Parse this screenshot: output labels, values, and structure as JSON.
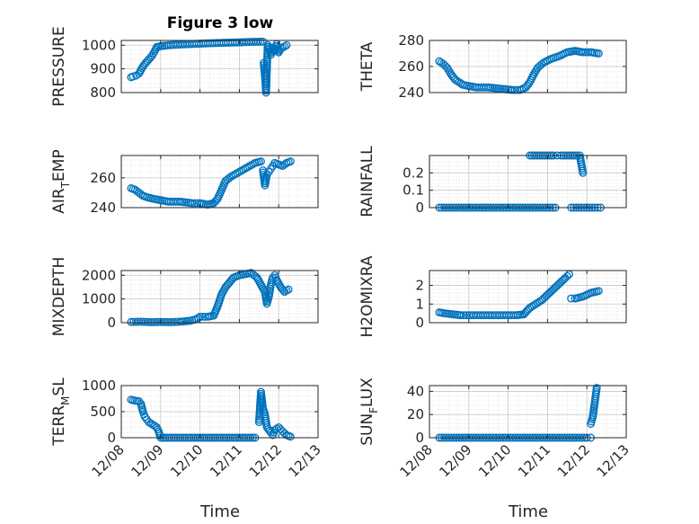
{
  "figure": {
    "title": "Figure 3 low",
    "xlabel": "Time"
  },
  "chart_data": [
    {
      "type": "scatter",
      "ylabel": "PRESSURE",
      "xlim": [
        0,
        5
      ],
      "ylim": [
        800,
        1020
      ],
      "yticks": [
        {
          "v": 800,
          "t": "800"
        },
        {
          "v": 900,
          "t": "900"
        },
        {
          "v": 1000,
          "t": "1000"
        }
      ],
      "grid": true,
      "segments": [
        [
          [
            0.25,
            865
          ],
          [
            0.3,
            868
          ],
          [
            0.38,
            872
          ],
          [
            0.45,
            880
          ],
          [
            0.5,
            895
          ],
          [
            0.55,
            910
          ],
          [
            0.62,
            925
          ],
          [
            0.7,
            940
          ],
          [
            0.78,
            955
          ],
          [
            0.85,
            975
          ],
          [
            0.9,
            992
          ],
          [
            1.0,
            996
          ],
          [
            1.2,
            1000
          ],
          [
            1.5,
            1003
          ],
          [
            1.8,
            1005
          ],
          [
            2.2,
            1008
          ],
          [
            2.6,
            1010
          ],
          [
            3.0,
            1012
          ],
          [
            3.3,
            1014
          ],
          [
            3.6,
            1015
          ]
        ],
        [
          [
            3.62,
            925
          ],
          [
            3.65,
            870
          ],
          [
            3.68,
            800
          ],
          [
            3.72,
            1000
          ],
          [
            3.77,
            985
          ],
          [
            3.8,
            960
          ],
          [
            3.85,
            990
          ],
          [
            3.9,
            975
          ],
          [
            3.95,
            1005
          ],
          [
            4.0,
            970
          ],
          [
            4.05,
            985
          ],
          [
            4.2,
            1000
          ]
        ]
      ]
    },
    {
      "type": "scatter",
      "ylabel": "THETA",
      "xlim": [
        0,
        5
      ],
      "ylim": [
        240,
        280
      ],
      "yticks": [
        {
          "v": 240,
          "t": "240"
        },
        {
          "v": 260,
          "t": "260"
        },
        {
          "v": 280,
          "t": "280"
        }
      ],
      "grid": true,
      "segments": [
        [
          [
            0.25,
            264
          ],
          [
            0.35,
            262
          ],
          [
            0.45,
            259
          ],
          [
            0.55,
            254
          ],
          [
            0.65,
            250
          ],
          [
            0.75,
            248
          ],
          [
            0.85,
            246
          ],
          [
            1.0,
            245
          ],
          [
            1.2,
            244
          ],
          [
            1.5,
            244
          ],
          [
            1.8,
            243
          ],
          [
            2.1,
            242
          ],
          [
            2.3,
            242
          ],
          [
            2.45,
            244
          ],
          [
            2.55,
            248
          ],
          [
            2.65,
            254
          ],
          [
            2.75,
            259
          ],
          [
            2.9,
            263
          ],
          [
            3.1,
            266
          ],
          [
            3.3,
            268
          ],
          [
            3.5,
            271
          ],
          [
            3.7,
            272
          ],
          [
            3.9,
            271
          ],
          [
            4.1,
            271
          ],
          [
            4.3,
            270
          ]
        ]
      ]
    },
    {
      "type": "scatter",
      "ylabel": "AIR",
      "ylabel_sub": "T",
      "ylabel_tail": "EMP",
      "xlim": [
        0,
        5
      ],
      "ylim": [
        240,
        275
      ],
      "yticks": [
        {
          "v": 240,
          "t": "240"
        },
        {
          "v": 260,
          "t": "260"
        }
      ],
      "grid": true,
      "segments": [
        [
          [
            0.25,
            253
          ],
          [
            0.35,
            252
          ],
          [
            0.45,
            250
          ],
          [
            0.55,
            248
          ],
          [
            0.65,
            247
          ],
          [
            0.8,
            246
          ],
          [
            1.0,
            245
          ],
          [
            1.2,
            244
          ],
          [
            1.5,
            244
          ],
          [
            1.8,
            243
          ],
          [
            2.0,
            243
          ],
          [
            2.2,
            242
          ],
          [
            2.35,
            243
          ],
          [
            2.45,
            246
          ],
          [
            2.55,
            252
          ],
          [
            2.65,
            258
          ],
          [
            2.8,
            261
          ],
          [
            3.0,
            264
          ],
          [
            3.2,
            267
          ],
          [
            3.4,
            270
          ],
          [
            3.55,
            271
          ]
        ],
        [
          [
            3.6,
            265
          ],
          [
            3.65,
            255
          ],
          [
            3.7,
            262
          ],
          [
            3.75,
            264
          ],
          [
            3.8,
            266
          ],
          [
            3.85,
            268
          ],
          [
            3.9,
            270
          ],
          [
            4.0,
            269
          ],
          [
            4.1,
            268
          ],
          [
            4.2,
            270
          ],
          [
            4.3,
            271
          ]
        ]
      ]
    },
    {
      "type": "scatter",
      "ylabel": "RAINFALL",
      "xlim": [
        0,
        5
      ],
      "ylim": [
        0,
        0.3
      ],
      "yticks": [
        {
          "v": 0,
          "t": "0"
        },
        {
          "v": 0.1,
          "t": "0.1"
        },
        {
          "v": 0.2,
          "t": "0.2"
        }
      ],
      "grid": true,
      "segments": [
        [
          [
            0.25,
            0
          ],
          [
            0.5,
            0
          ],
          [
            0.75,
            0
          ],
          [
            1.0,
            0
          ],
          [
            1.25,
            0
          ],
          [
            1.5,
            0
          ],
          [
            1.75,
            0
          ],
          [
            2.0,
            0
          ],
          [
            2.25,
            0
          ],
          [
            2.5,
            0
          ],
          [
            2.75,
            0
          ],
          [
            3.0,
            0
          ],
          [
            3.2,
            0
          ]
        ],
        [
          [
            2.55,
            0.3
          ],
          [
            3.05,
            0.3
          ],
          [
            3.1,
            0.3
          ],
          [
            3.15,
            0.3
          ],
          [
            3.25,
            0.3
          ],
          [
            3.35,
            0.3
          ],
          [
            3.75,
            0.3
          ],
          [
            3.82,
            0.3
          ],
          [
            3.9,
            0.2
          ]
        ],
        [
          [
            3.6,
            0
          ],
          [
            3.8,
            0
          ],
          [
            4.0,
            0
          ],
          [
            4.2,
            0
          ],
          [
            4.35,
            0
          ]
        ]
      ]
    },
    {
      "type": "scatter",
      "ylabel": "MIXDEPTH",
      "xlim": [
        0,
        5
      ],
      "ylim": [
        0,
        2200
      ],
      "yticks": [
        {
          "v": 0,
          "t": "0"
        },
        {
          "v": 1000,
          "t": "1000"
        },
        {
          "v": 2000,
          "t": "2000"
        }
      ],
      "grid": true,
      "segments": [
        [
          [
            0.25,
            30
          ],
          [
            0.5,
            40
          ],
          [
            0.75,
            20
          ],
          [
            1.0,
            30
          ],
          [
            1.25,
            20
          ],
          [
            1.5,
            40
          ],
          [
            1.75,
            80
          ],
          [
            1.9,
            150
          ],
          [
            2.0,
            250
          ],
          [
            2.2,
            250
          ],
          [
            2.35,
            300
          ],
          [
            2.45,
            700
          ],
          [
            2.55,
            1200
          ],
          [
            2.65,
            1500
          ],
          [
            2.75,
            1700
          ],
          [
            2.85,
            1900
          ],
          [
            3.0,
            2000
          ],
          [
            3.15,
            2050
          ],
          [
            3.3,
            2100
          ],
          [
            3.45,
            1900
          ],
          [
            3.55,
            1600
          ],
          [
            3.65,
            1300
          ],
          [
            3.7,
            800
          ],
          [
            3.75,
            1100
          ],
          [
            3.8,
            1600
          ],
          [
            3.85,
            1900
          ],
          [
            3.9,
            2000
          ],
          [
            3.95,
            1800
          ],
          [
            4.05,
            1500
          ],
          [
            4.15,
            1300
          ],
          [
            4.25,
            1400
          ]
        ]
      ]
    },
    {
      "type": "scatter",
      "ylabel": "H2OMIXRA",
      "xlim": [
        0,
        5
      ],
      "ylim": [
        0,
        2.8
      ],
      "yticks": [
        {
          "v": 0,
          "t": "0"
        },
        {
          "v": 1,
          "t": "1"
        },
        {
          "v": 2,
          "t": "2"
        }
      ],
      "grid": true,
      "segments": [
        [
          [
            0.25,
            0.55
          ],
          [
            0.4,
            0.5
          ],
          [
            0.6,
            0.45
          ],
          [
            0.8,
            0.4
          ],
          [
            1.0,
            0.4
          ],
          [
            1.3,
            0.4
          ],
          [
            1.6,
            0.4
          ],
          [
            1.9,
            0.4
          ],
          [
            2.2,
            0.4
          ],
          [
            2.4,
            0.45
          ],
          [
            2.55,
            0.8
          ],
          [
            2.7,
            1.0
          ],
          [
            2.85,
            1.2
          ],
          [
            3.0,
            1.5
          ],
          [
            3.15,
            1.8
          ],
          [
            3.3,
            2.1
          ],
          [
            3.45,
            2.4
          ],
          [
            3.55,
            2.6
          ]
        ],
        [
          [
            3.6,
            1.3
          ],
          [
            3.7,
            1.3
          ],
          [
            3.8,
            1.35
          ],
          [
            3.9,
            1.4
          ],
          [
            4.0,
            1.5
          ],
          [
            4.1,
            1.6
          ],
          [
            4.2,
            1.65
          ],
          [
            4.3,
            1.7
          ]
        ]
      ]
    },
    {
      "type": "scatter",
      "ylabel": "TERR",
      "ylabel_sub": "M",
      "ylabel_tail": "SL",
      "xlim": [
        0,
        5
      ],
      "ylim": [
        0,
        1000
      ],
      "yticks": [
        {
          "v": 0,
          "t": "0"
        },
        {
          "v": 500,
          "t": "500"
        },
        {
          "v": 1000,
          "t": "1000"
        }
      ],
      "grid": true,
      "segments": [
        [
          [
            0.25,
            730
          ],
          [
            0.35,
            710
          ],
          [
            0.45,
            700
          ],
          [
            0.5,
            650
          ],
          [
            0.55,
            500
          ],
          [
            0.6,
            400
          ],
          [
            0.65,
            350
          ],
          [
            0.7,
            300
          ],
          [
            0.8,
            250
          ],
          [
            0.9,
            200
          ],
          [
            0.95,
            120
          ],
          [
            1.0,
            0
          ],
          [
            1.5,
            0
          ],
          [
            2.0,
            0
          ],
          [
            2.5,
            0
          ],
          [
            3.0,
            0
          ],
          [
            3.4,
            0
          ]
        ],
        [
          [
            3.5,
            300
          ],
          [
            3.55,
            880
          ],
          [
            3.6,
            560
          ],
          [
            3.65,
            450
          ],
          [
            3.7,
            200
          ],
          [
            3.8,
            100
          ],
          [
            3.85,
            50
          ],
          [
            3.9,
            150
          ],
          [
            4.0,
            200
          ],
          [
            4.1,
            120
          ],
          [
            4.2,
            50
          ],
          [
            4.3,
            20
          ]
        ]
      ]
    },
    {
      "type": "scatter",
      "ylabel": "SUN",
      "ylabel_sub": "F",
      "ylabel_tail": "LUX",
      "xlim": [
        0,
        5
      ],
      "ylim": [
        0,
        45
      ],
      "yticks": [
        {
          "v": 0,
          "t": "0"
        },
        {
          "v": 20,
          "t": "20"
        },
        {
          "v": 40,
          "t": "40"
        }
      ],
      "grid": true,
      "segments": [
        [
          [
            0.25,
            0
          ],
          [
            0.5,
            0
          ],
          [
            0.75,
            0
          ],
          [
            1.0,
            0
          ],
          [
            1.25,
            0
          ],
          [
            1.5,
            0
          ],
          [
            1.75,
            0
          ],
          [
            2.0,
            0
          ],
          [
            2.25,
            0
          ],
          [
            2.5,
            0
          ],
          [
            2.75,
            0
          ],
          [
            3.0,
            0
          ],
          [
            3.25,
            0
          ],
          [
            3.5,
            0
          ],
          [
            3.75,
            0
          ],
          [
            4.0,
            0
          ],
          [
            4.1,
            0
          ]
        ],
        [
          [
            4.1,
            12
          ],
          [
            4.15,
            18
          ],
          [
            4.2,
            30
          ],
          [
            4.25,
            43
          ]
        ]
      ]
    }
  ],
  "xticks": [
    {
      "v": 0,
      "t": "12/08"
    },
    {
      "v": 1,
      "t": "12/09"
    },
    {
      "v": 2,
      "t": "12/10"
    },
    {
      "v": 3,
      "t": "12/11"
    },
    {
      "v": 4,
      "t": "12/12"
    },
    {
      "v": 5,
      "t": "12/13"
    }
  ],
  "marker_color": "#0072bd"
}
